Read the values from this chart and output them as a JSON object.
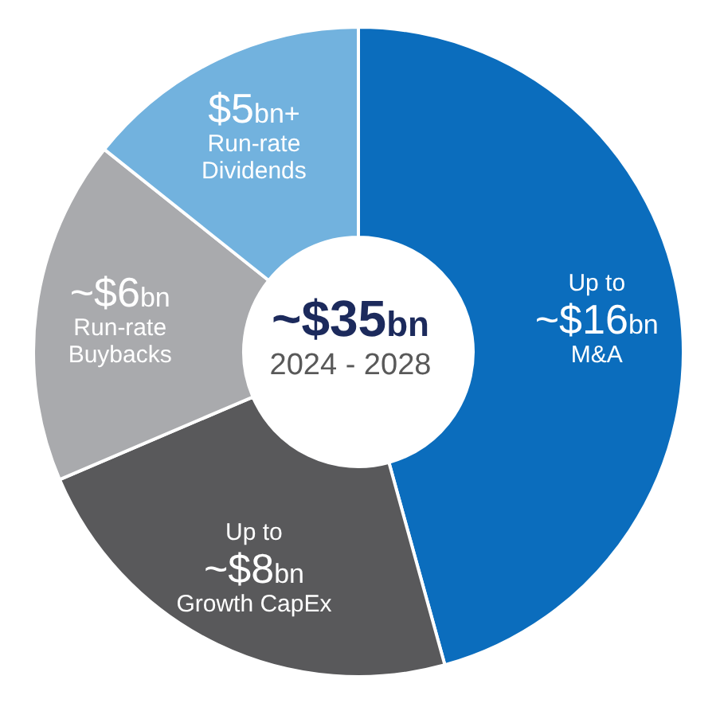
{
  "chart_data": {
    "type": "donut",
    "title": "~$35bn",
    "subtitle": "2024 - 2028",
    "categories": [
      "M&A",
      "Growth CapEx",
      "Run-rate Buybacks",
      "Run-rate Dividends"
    ],
    "values": [
      16,
      8,
      6,
      5
    ],
    "colors": [
      "#0b6dbd",
      "#59595b",
      "#a9aaad",
      "#72b2de"
    ],
    "value_labels": [
      "Up to ~$16bn",
      "Up to ~$8bn",
      "~$6bn",
      "$5bn+"
    ],
    "legend": false
  }
}
